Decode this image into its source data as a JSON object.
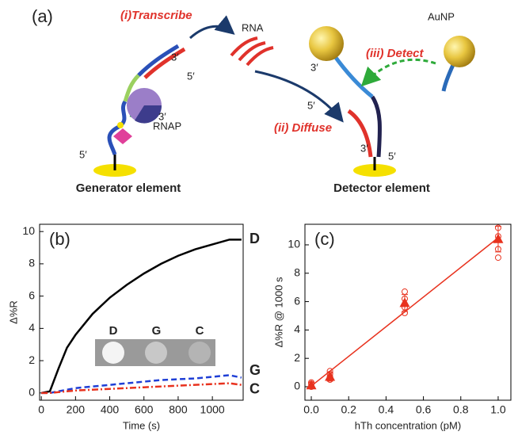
{
  "diagram": {
    "panel_label": "(a)",
    "transcribe": "(i)Transcribe",
    "rna": "RNA",
    "rnap": "RNAP",
    "aunp": "AuNP",
    "detect": "(iii) Detect",
    "diffuse": "(ii) Diffuse",
    "generator": "Generator element",
    "detector": "Detector element",
    "ends": [
      "3′",
      "5′",
      "3′",
      "5′",
      "3′",
      "5′",
      "3′",
      "5′"
    ]
  },
  "chart_data": [
    {
      "type": "line",
      "panel_label": "(b)",
      "xlabel": "Time (s)",
      "ylabel": "Δ%R",
      "x": [
        0,
        50,
        100,
        150,
        200,
        300,
        400,
        500,
        600,
        700,
        800,
        900,
        1000,
        1100,
        1170
      ],
      "series": [
        {
          "name": "D",
          "color": "#000000",
          "dash": "solid",
          "values": [
            0,
            0.1,
            1.5,
            2.8,
            3.6,
            4.9,
            5.9,
            6.7,
            7.4,
            8.0,
            8.5,
            8.9,
            9.2,
            9.5,
            9.5
          ]
        },
        {
          "name": "G",
          "color": "#1f3fd6",
          "dash": "dashed",
          "values": [
            0,
            0,
            0.1,
            0.2,
            0.3,
            0.4,
            0.5,
            0.6,
            0.7,
            0.8,
            0.85,
            0.9,
            1.0,
            1.1,
            0.95
          ]
        },
        {
          "name": "C",
          "color": "#e8321e",
          "dash": "dashdot",
          "values": [
            0,
            0,
            0.05,
            0.1,
            0.15,
            0.2,
            0.25,
            0.3,
            0.35,
            0.4,
            0.45,
            0.5,
            0.55,
            0.6,
            0.5
          ]
        }
      ],
      "xlim": [
        -10,
        1180
      ],
      "ylim": [
        -0.45,
        10.45
      ],
      "xticks": [
        0,
        200,
        400,
        600,
        800,
        1000
      ],
      "yticks": [
        0,
        2,
        4,
        6,
        8,
        10
      ]
    },
    {
      "type": "scatter",
      "panel_label": "(c)",
      "xlabel": "hTh concentration (pM)",
      "ylabel": "Δ%R @ 1000 s",
      "color": "#e8321e",
      "mean": {
        "x": [
          0,
          0.1,
          0.5,
          1.0
        ],
        "values": [
          0.1,
          0.7,
          5.9,
          10.4
        ],
        "errors": [
          0.2,
          0.3,
          0.6,
          0.9
        ]
      },
      "replicates": {
        "x": [
          0,
          0,
          0,
          0.1,
          0.1,
          0.1,
          0.1,
          0.5,
          0.5,
          0.5,
          0.5,
          1.0,
          1.0,
          1.0,
          1.0
        ],
        "values": [
          0.0,
          0.2,
          0.3,
          0.5,
          0.7,
          0.9,
          1.1,
          5.2,
          5.6,
          6.2,
          6.7,
          9.1,
          9.7,
          10.6,
          11.2
        ]
      },
      "fit": {
        "x": [
          0,
          1.0
        ],
        "values": [
          0.05,
          10.5
        ]
      },
      "xlim": [
        -0.034,
        1.068
      ],
      "ylim": [
        -0.95,
        11.45
      ],
      "xticks": [
        {
          "value": 0,
          "label": "0.0"
        },
        0.2,
        0.4,
        0.6,
        0.8,
        {
          "value": 1.0,
          "label": "1.0"
        }
      ],
      "yticks": [
        0,
        2,
        4,
        6,
        8,
        10
      ]
    }
  ]
}
